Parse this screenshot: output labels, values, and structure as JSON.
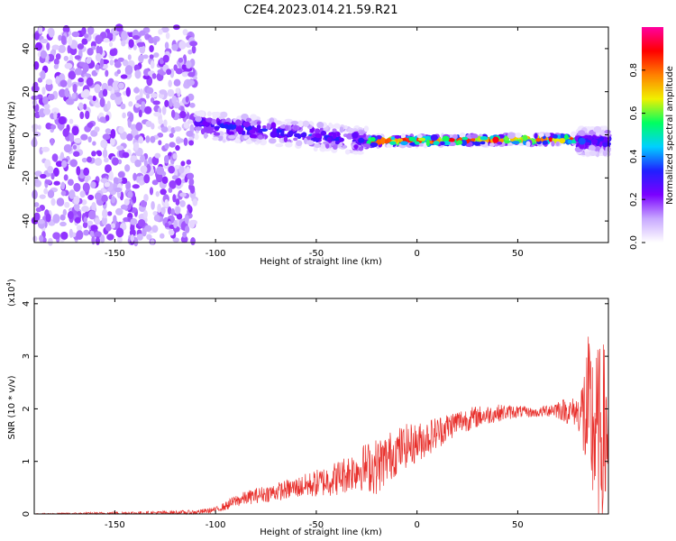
{
  "chart_data": [
    {
      "type": "heatmap",
      "title": "C2E4.2023.014.21.59.R21",
      "xlabel": "Height of straight line (km)",
      "ylabel": "Frequency (Hz)",
      "xlim": [
        -190,
        95
      ],
      "ylim": [
        -50,
        50
      ],
      "xticks": [
        -150,
        -100,
        -50,
        0,
        50
      ],
      "yticks": [
        -40,
        -20,
        0,
        20,
        40
      ],
      "colorbar": {
        "label": "Normalized spectral amplitude",
        "range": [
          0,
          1
        ],
        "ticks": [
          0.0,
          0.2,
          0.4,
          0.6,
          0.8
        ],
        "colormap": [
          "#ffffff",
          "#c8a8ff",
          "#7a00ff",
          "#2020ff",
          "#00d0ff",
          "#00ff60",
          "#f0f000",
          "#ff8000",
          "#ff0000",
          "#ff00a0"
        ]
      },
      "regions": [
        {
          "name": "noise",
          "x_range": [
            -190,
            -110
          ],
          "freq_range": [
            -50,
            50
          ],
          "amplitude": 0.1
        },
        {
          "name": "signal-band",
          "x_range": [
            -110,
            -25
          ],
          "freq_center": [
            5,
            -3
          ],
          "amplitude": 0.3
        },
        {
          "name": "signal-line",
          "x_range": [
            -25,
            80
          ],
          "freq_center": [
            -3,
            -2
          ],
          "amplitude": 0.9
        },
        {
          "name": "edge-noise",
          "x_range": [
            80,
            95
          ],
          "freq_center": [
            -3,
            -3
          ],
          "amplitude": 0.3
        }
      ]
    },
    {
      "type": "line",
      "xlabel": "Height of straight line (km)",
      "ylabel": "SNR (10 * v/v)",
      "scale_label": "(x10",
      "scale_exponent": "4",
      "scale_close": ")",
      "xlim": [
        -190,
        95
      ],
      "ylim": [
        0,
        4.1
      ],
      "xticks": [
        -150,
        -100,
        -50,
        0,
        50
      ],
      "yticks": [
        0,
        1,
        2,
        3,
        4
      ],
      "series_color": "#e8302c",
      "series": [
        {
          "envelope_x": [
            -190,
            -130,
            -110,
            -100,
            -95,
            -90,
            -80,
            -70,
            -60,
            -50,
            -40,
            -30,
            -25,
            -20,
            -15,
            -10,
            -5,
            0,
            5,
            10,
            15,
            20,
            25,
            30,
            40,
            50,
            60,
            65,
            70,
            75,
            80,
            85,
            88,
            90,
            92,
            95
          ],
          "envelope_y": [
            0.0,
            0.02,
            0.03,
            0.08,
            0.15,
            0.25,
            0.35,
            0.42,
            0.5,
            0.58,
            0.68,
            0.85,
            0.9,
            0.9,
            1.05,
            1.2,
            1.3,
            1.35,
            1.45,
            1.55,
            1.65,
            1.75,
            1.8,
            1.85,
            1.92,
            1.95,
            1.92,
            1.98,
            2.0,
            1.95,
            1.95,
            1.8,
            1.6,
            1.5,
            1.5,
            1.6
          ],
          "amplitude_x": [
            -190,
            -100,
            -90,
            -60,
            -30,
            -20,
            -10,
            20,
            60,
            80,
            85,
            95
          ],
          "amplitude_y": [
            0.01,
            0.05,
            0.12,
            0.2,
            0.4,
            0.55,
            0.45,
            0.25,
            0.08,
            0.3,
            1.6,
            1.8
          ]
        }
      ]
    }
  ]
}
